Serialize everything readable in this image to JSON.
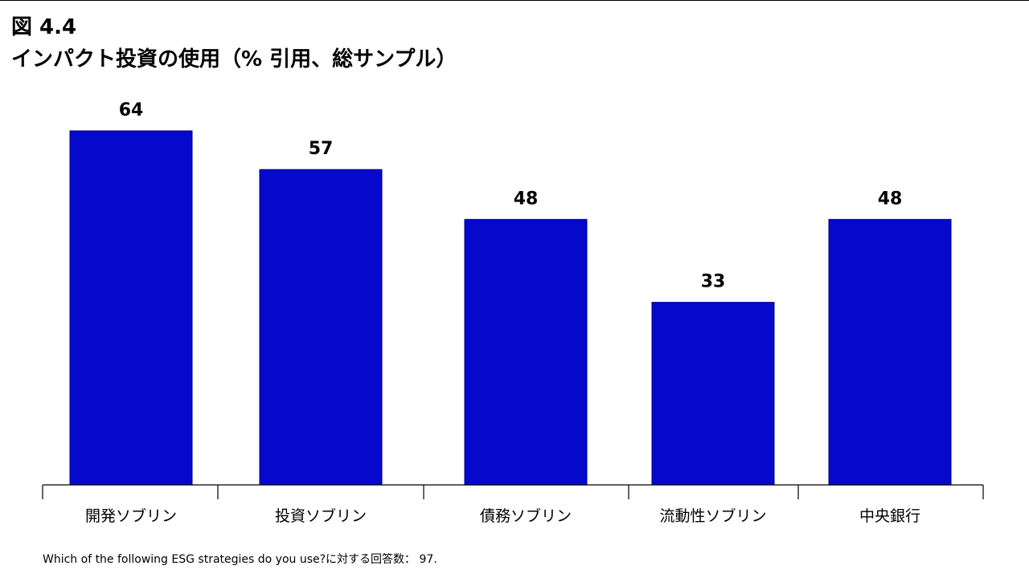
{
  "figure": {
    "number": "図 4.4",
    "title": "インパクト投資の使用（% 引用、総サンプル）",
    "footnote": "Which of the following ESG strategies do you use?に対する回答数： 97."
  },
  "chart_data": {
    "type": "bar",
    "categories": [
      "開発ソブリン",
      "投資ソブリン",
      "債務ソブリン",
      "流動性ソブリン",
      "中央銀行"
    ],
    "values": [
      64,
      57,
      48,
      33,
      48
    ],
    "bar_color": "#0509cc",
    "ylim": [
      0,
      100
    ],
    "grid": false,
    "legend": "none"
  }
}
